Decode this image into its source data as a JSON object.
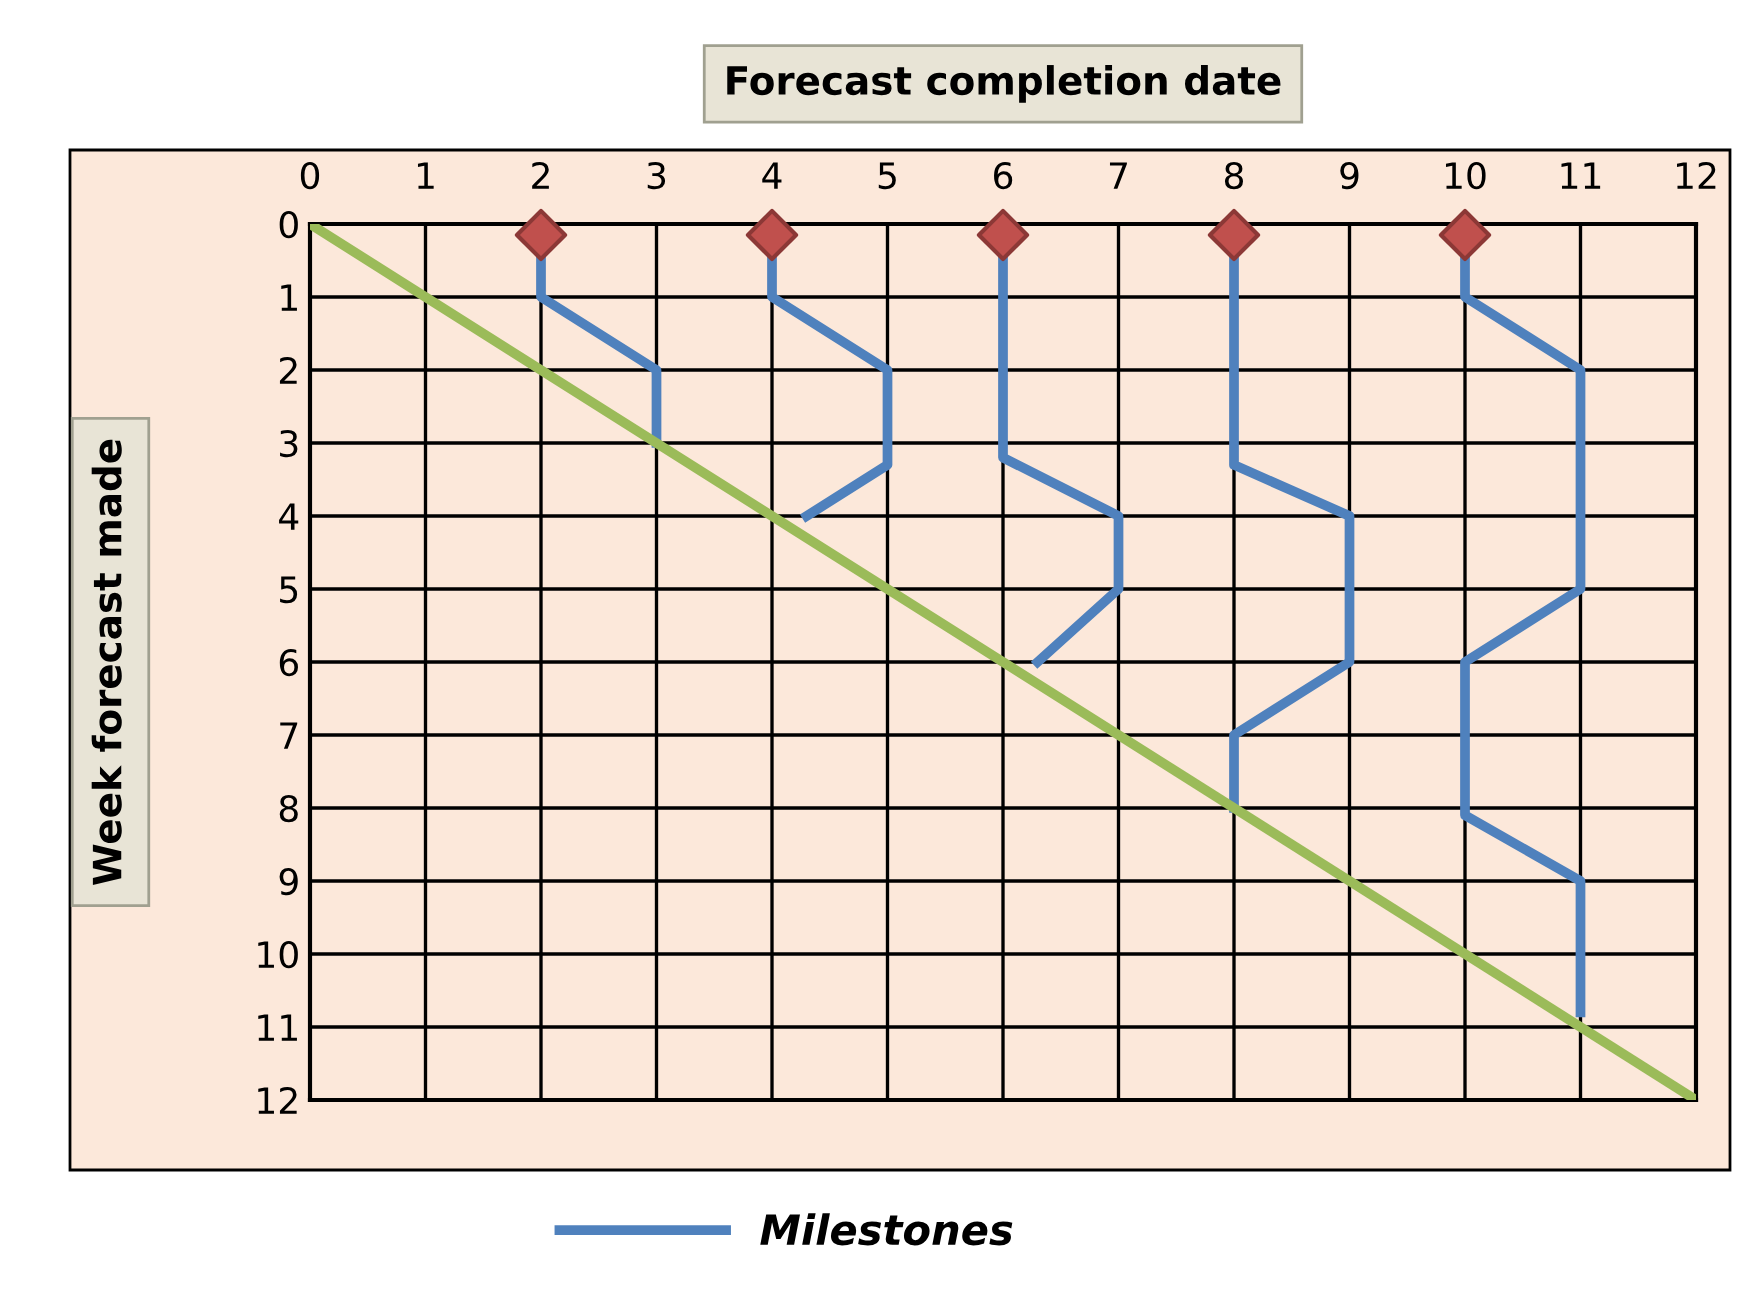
{
  "chart_data": {
    "type": "line",
    "xlabel": "Forecast completion date",
    "ylabel": "Week forecast made",
    "xlim": [
      0,
      12
    ],
    "xticks": [
      0,
      1,
      2,
      3,
      4,
      5,
      6,
      7,
      8,
      9,
      10,
      11,
      12
    ],
    "ylim": [
      12,
      0
    ],
    "yticks": [
      0,
      1,
      2,
      3,
      4,
      5,
      6,
      7,
      8,
      9,
      10,
      11,
      12
    ],
    "grid": true,
    "legend": "bottom",
    "line_style": "solid",
    "marker": "none",
    "series": [
      {
        "name": "Milestones",
        "color": "#4f81bd",
        "x": [
          2,
          2,
          3,
          3
        ],
        "values": [
          0.5,
          1,
          2,
          3
        ]
      },
      {
        "color": "#4f81bd",
        "x": [
          4,
          4,
          5,
          5,
          4.3
        ],
        "values": [
          0.5,
          1,
          2,
          3.3,
          4
        ]
      },
      {
        "color": "#4f81bd",
        "x": [
          6,
          6,
          7,
          7,
          6.3
        ],
        "values": [
          0.5,
          3.2,
          4,
          5,
          6
        ]
      },
      {
        "color": "#4f81bd",
        "x": [
          8,
          8,
          9,
          9,
          8,
          8
        ],
        "values": [
          0.5,
          3.3,
          4,
          6,
          7,
          8
        ]
      },
      {
        "color": "#4f81bd",
        "x": [
          10,
          10,
          11,
          11,
          10,
          10,
          11,
          11
        ],
        "values": [
          0.5,
          1,
          2,
          5,
          6,
          8.1,
          9,
          10.8
        ]
      },
      {
        "color": "#9bbb59",
        "x": [
          0,
          12
        ],
        "values": [
          0,
          12
        ]
      },
      {
        "type": "scatter",
        "marker": "diamond",
        "color": "#c0504d",
        "x": [
          2,
          4,
          6,
          8,
          10
        ],
        "values": [
          0.15,
          0.15,
          0.15,
          0.15,
          0.15
        ]
      }
    ]
  }
}
